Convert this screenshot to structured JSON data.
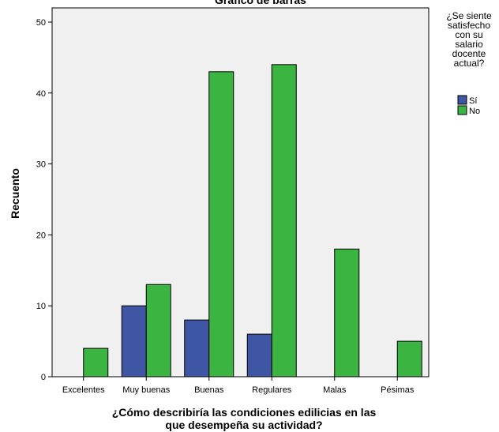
{
  "chart_data": {
    "type": "bar",
    "title": "Gráfico de barras",
    "xlabel": [
      "¿Cómo describiría las condiciones edilicias en las",
      "que desempeña su actividad?"
    ],
    "ylabel": "Recuento",
    "categories": [
      "Excelentes",
      "Muy buenas",
      "Buenas",
      "Regulares",
      "Malas",
      "Pésimas"
    ],
    "series": [
      {
        "name": "Sí",
        "color": "#3f56a5",
        "values": [
          null,
          10,
          8,
          6,
          null,
          null
        ]
      },
      {
        "name": "No",
        "color": "#3cb441",
        "values": [
          4,
          13,
          43,
          44,
          18,
          5
        ]
      }
    ],
    "ylim": [
      0,
      52
    ],
    "yticks": [
      0,
      10,
      20,
      30,
      40,
      50
    ],
    "legend": {
      "title": [
        "¿Se siente",
        "satisfecho",
        "con su",
        "salario",
        "docente",
        "actual?"
      ],
      "position": "right"
    },
    "grid": false,
    "plot_background": "#f0f0f0"
  }
}
